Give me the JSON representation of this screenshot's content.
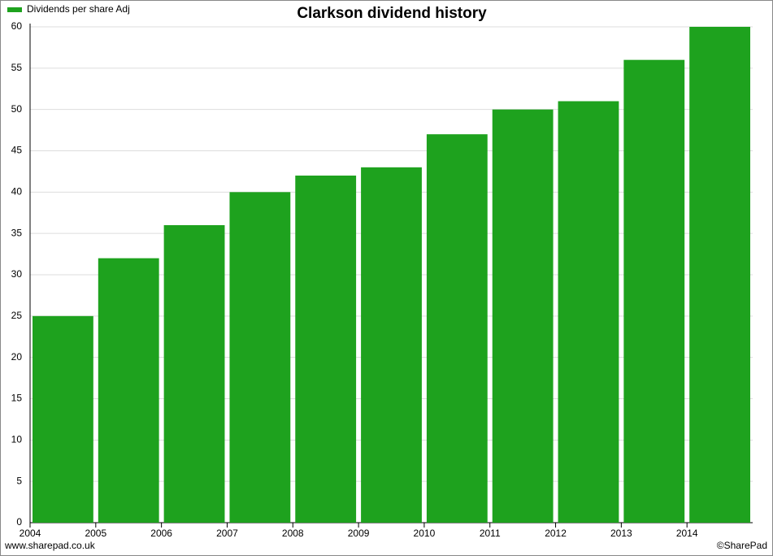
{
  "chart_data": {
    "type": "bar",
    "title": "Clarkson dividend history",
    "categories": [
      "2004",
      "2005",
      "2006",
      "2007",
      "2008",
      "2009",
      "2010",
      "2011",
      "2012",
      "2013",
      "2014"
    ],
    "series": [
      {
        "name": "Dividends per share Adj",
        "color": "#1ea21e",
        "values": [
          25,
          32,
          36,
          40,
          42,
          43,
          47,
          50,
          51,
          56,
          60
        ]
      }
    ],
    "ylim": [
      0,
      60
    ],
    "yticks": [
      0,
      5,
      10,
      15,
      20,
      25,
      30,
      35,
      40,
      45,
      50,
      55,
      60
    ],
    "grid": true,
    "legend": "top-left",
    "source": "www.sharepad.co.uk",
    "credit": "©SharePad"
  }
}
